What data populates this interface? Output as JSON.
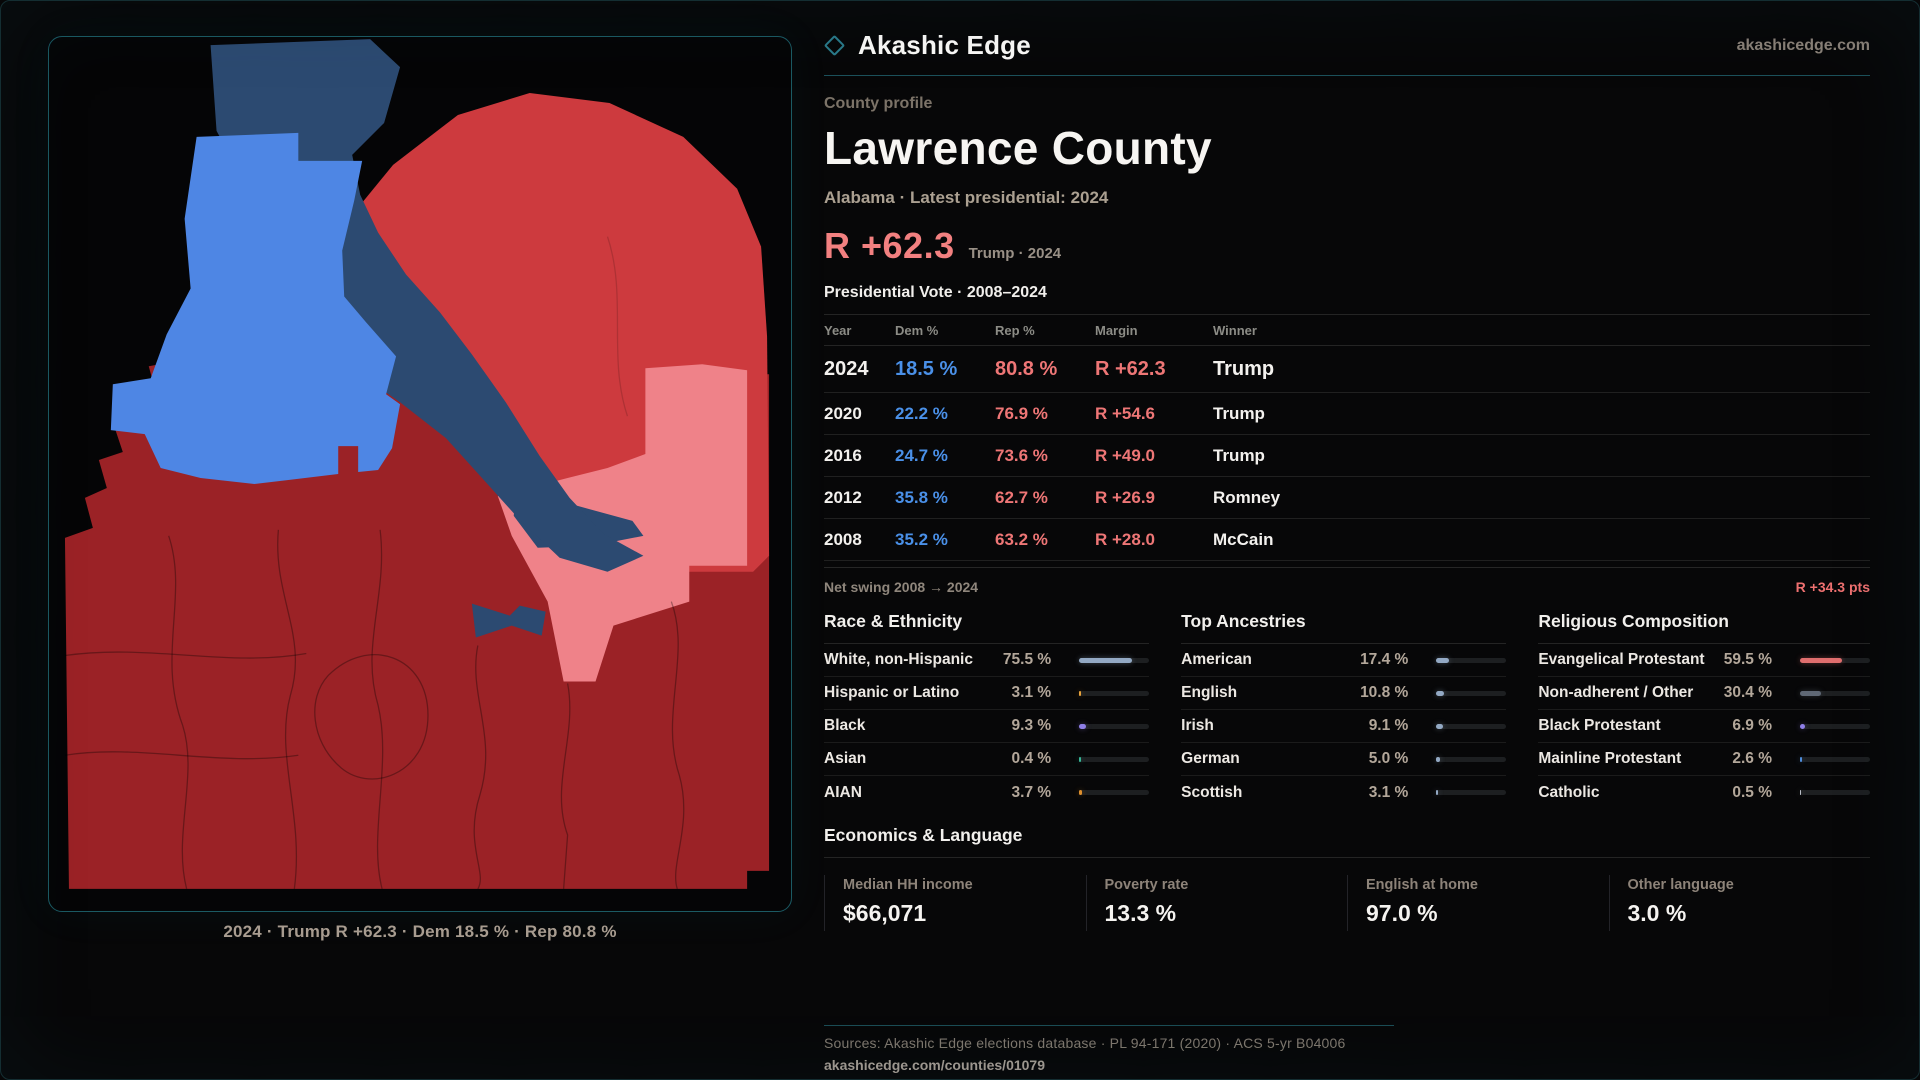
{
  "site": {
    "brand": "Akashic Edge",
    "domain": "akashicedge.com"
  },
  "header": {
    "eyebrow": "County profile",
    "title": "Lawrence County",
    "subtitle": "Alabama · Latest presidential: 2024"
  },
  "headline": {
    "margin": "R +62.3",
    "context": "Trump · 2024",
    "color": "#f28080"
  },
  "vote_table": {
    "title": "Presidential Vote · 2008–2024",
    "columns": [
      "Year",
      "Dem %",
      "Rep %",
      "Margin",
      "Winner"
    ],
    "rows": [
      {
        "year": "2024",
        "dem": "18.5 %",
        "rep": "80.8 %",
        "margin": "R +62.3",
        "winner": "Trump",
        "highlight": true
      },
      {
        "year": "2020",
        "dem": "22.2 %",
        "rep": "76.9 %",
        "margin": "R +54.6",
        "winner": "Trump",
        "highlight": false
      },
      {
        "year": "2016",
        "dem": "24.7 %",
        "rep": "73.6 %",
        "margin": "R +49.0",
        "winner": "Trump",
        "highlight": false
      },
      {
        "year": "2012",
        "dem": "35.8 %",
        "rep": "62.7 %",
        "margin": "R +26.9",
        "winner": "Romney",
        "highlight": false
      },
      {
        "year": "2008",
        "dem": "35.2 %",
        "rep": "63.2 %",
        "margin": "R +28.0",
        "winner": "McCain",
        "highlight": false
      }
    ],
    "net_swing_label": "Net swing 2008 → 2024",
    "net_swing_value": "R +34.3 pts"
  },
  "demographics": [
    {
      "title": "Race & Ethnicity",
      "rows": [
        {
          "label": "White, non-Hispanic",
          "value": "75.5 %",
          "pct": 75.5,
          "color": "#93a9c4"
        },
        {
          "label": "Hispanic or Latino",
          "value": "3.1 %",
          "pct": 3.1,
          "color": "#e6a23c"
        },
        {
          "label": "Black",
          "value": "9.3 %",
          "pct": 9.3,
          "color": "#8f7fe8"
        },
        {
          "label": "Asian",
          "value": "0.4 %",
          "pct": 0.4,
          "color": "#38b597"
        },
        {
          "label": "AIAN",
          "value": "3.7 %",
          "pct": 3.7,
          "color": "#de8f2d"
        }
      ]
    },
    {
      "title": "Top Ancestries",
      "rows": [
        {
          "label": "American",
          "value": "17.4 %",
          "pct": 17.4,
          "color": "#93a9c4"
        },
        {
          "label": "English",
          "value": "10.8 %",
          "pct": 10.8,
          "color": "#93a9c4"
        },
        {
          "label": "Irish",
          "value": "9.1 %",
          "pct": 9.1,
          "color": "#93a9c4"
        },
        {
          "label": "German",
          "value": "5.0 %",
          "pct": 5.0,
          "color": "#93a9c4"
        },
        {
          "label": "Scottish",
          "value": "3.1 %",
          "pct": 3.1,
          "color": "#93a9c4"
        }
      ]
    },
    {
      "title": "Religious Composition",
      "rows": [
        {
          "label": "Evangelical Protestant",
          "value": "59.5 %",
          "pct": 59.5,
          "color": "#e06e6e"
        },
        {
          "label": "Non-adherent / Other",
          "value": "30.4 %",
          "pct": 30.4,
          "color": "#5f6875"
        },
        {
          "label": "Black Protestant",
          "value": "6.9 %",
          "pct": 6.9,
          "color": "#8f7fe8"
        },
        {
          "label": "Mainline Protestant",
          "value": "2.6 %",
          "pct": 2.6,
          "color": "#4f8ddb"
        },
        {
          "label": "Catholic",
          "value": "0.5 %",
          "pct": 0.5,
          "color": "#b9bec6"
        }
      ]
    }
  ],
  "economics": {
    "title": "Economics & Language",
    "stats": [
      {
        "label": "Median HH income",
        "value": "$66,071"
      },
      {
        "label": "Poverty rate",
        "value": "13.3 %"
      },
      {
        "label": "English at home",
        "value": "97.0 %"
      },
      {
        "label": "Other language",
        "value": "3.0 %"
      }
    ]
  },
  "map": {
    "caption": "2024 · Trump R +62.3 · Dem 18.5 % · Rep 80.8 %",
    "colors": {
      "maroon": "#9b2226",
      "red": "#cd3a3e",
      "salmon": "#ef8289",
      "navy": "#2c4a71",
      "blue": "#4e86e4"
    }
  },
  "footer": {
    "sources": "Sources: Akashic Edge elections database · PL 94-171 (2020) · ACS 5-yr B04006",
    "permalink": "akashicedge.com/counties/01079"
  }
}
